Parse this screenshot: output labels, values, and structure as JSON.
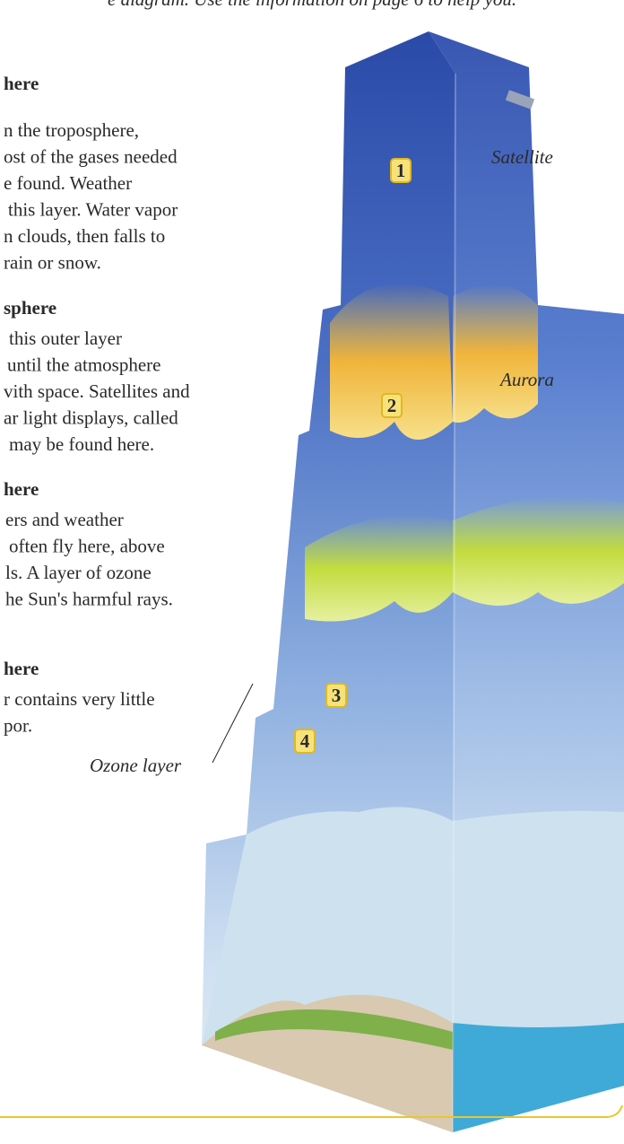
{
  "header": {
    "instruction": "e diagram. Use the information on page 6 to help you."
  },
  "sections": [
    {
      "heading": "here",
      "lines": [
        "n the troposphere,",
        "ost of the gases needed",
        "e found. Weather",
        "this layer. Water vapor",
        "n clouds, then falls to",
        "rain or snow."
      ]
    },
    {
      "heading": "sphere",
      "lines": [
        "this outer layer",
        "until the atmosphere",
        "vith space. Satellites and",
        "ar light displays, called",
        "may be found here."
      ]
    },
    {
      "heading": "here",
      "lines": [
        "ers and weather",
        "often fly here, above",
        "ls. A layer of ozone",
        "he Sun's harmful rays."
      ]
    },
    {
      "heading": "here",
      "lines": [
        "r contains very little",
        "por."
      ]
    }
  ],
  "diagram": {
    "labels": {
      "satellite": "Satellite",
      "aurora": "Aurora",
      "ozone": "Ozone layer"
    },
    "markers": [
      "1",
      "2",
      "3",
      "4"
    ]
  }
}
